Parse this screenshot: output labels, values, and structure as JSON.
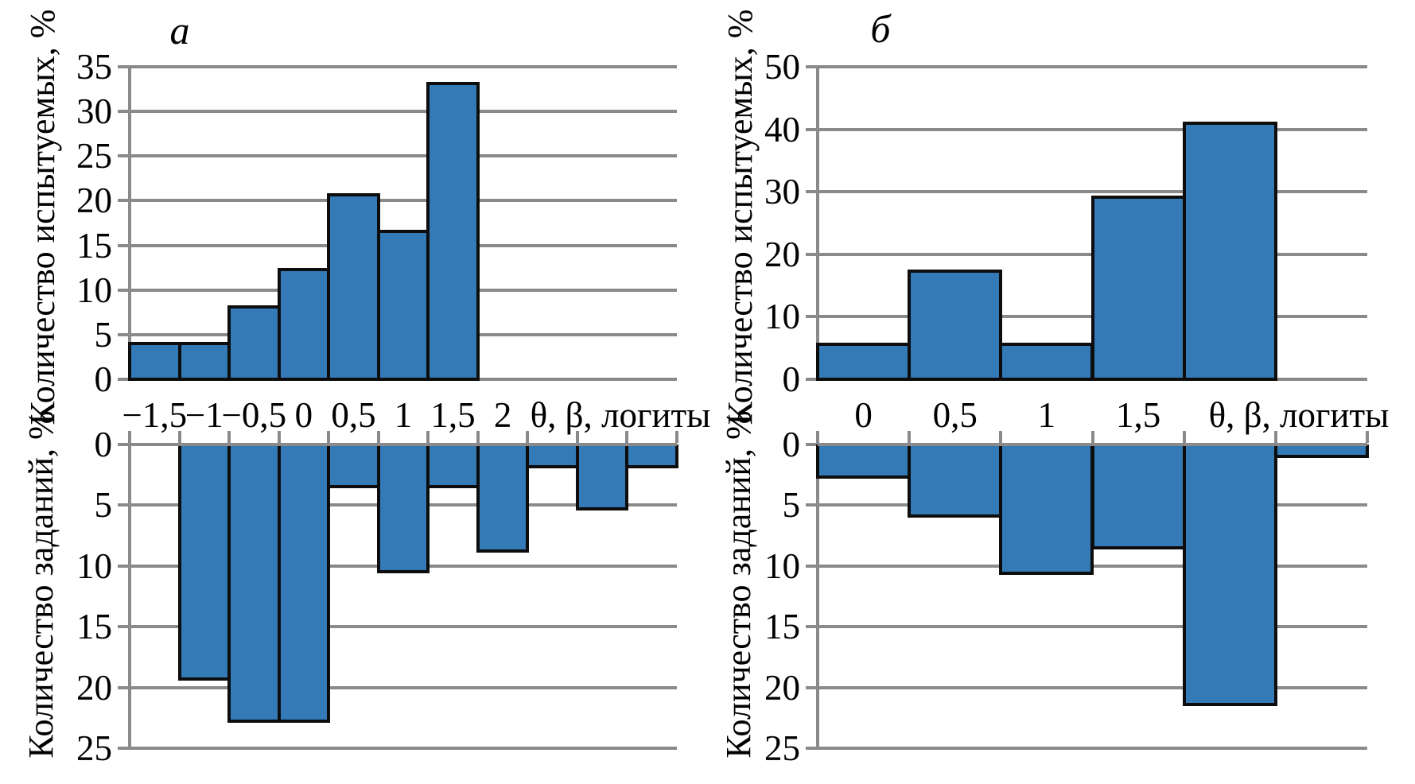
{
  "figure": {
    "panels": [
      {
        "label": "а"
      },
      {
        "label": "б"
      }
    ],
    "colors": {
      "bar_fill": "#347ab7",
      "bar_border": "#0d0d0d",
      "grid": "#8a8a8a",
      "background": "#ffffff",
      "text": "#000000"
    }
  },
  "chart_data": [
    {
      "id": "panel-a-top",
      "type": "bar",
      "orientation": "up",
      "ylabel": "Количество испытуемых, %",
      "xlabel": "θ, β, логиты",
      "ylim": [
        0,
        35
      ],
      "yticks": [
        35,
        30,
        25,
        20,
        15,
        10,
        5,
        0
      ],
      "x_tick_labels": [
        "−1,5",
        "−1",
        "−0,5",
        "0",
        "0,5",
        "1",
        "1,5",
        "2"
      ],
      "categories": [
        "−1,5",
        "−1",
        "−0,5",
        "0",
        "0,5",
        "1",
        "1,5"
      ],
      "values": [
        4.2,
        4.2,
        8.3,
        12.5,
        20.8,
        16.7,
        33.3
      ],
      "start_slot": 1,
      "n_slots": 11,
      "grid": true,
      "legend": false
    },
    {
      "id": "panel-a-bottom",
      "type": "bar",
      "orientation": "down",
      "ylabel": "Количество заданий, %",
      "ylim": [
        0,
        25
      ],
      "yticks": [
        0,
        5,
        10,
        15,
        20,
        25
      ],
      "categories": [
        "−1",
        "−0,5",
        "0",
        "0,5",
        "1",
        "1,5",
        "2",
        "",
        "",
        ""
      ],
      "values": [
        19.3,
        22.8,
        22.8,
        3.5,
        10.5,
        3.5,
        8.8,
        1.8,
        5.3,
        1.8
      ],
      "start_slot": 2,
      "n_slots": 11,
      "grid": true,
      "legend": false
    },
    {
      "id": "panel-b-top",
      "type": "bar",
      "orientation": "up",
      "ylabel": "Количество испытуемых, %",
      "xlabel": "θ, β, логиты",
      "ylim": [
        0,
        50
      ],
      "yticks": [
        50,
        40,
        30,
        20,
        10,
        0
      ],
      "x_tick_labels": [
        "0",
        "0,5",
        "1",
        "1,5"
      ],
      "categories": [
        "0",
        "0,5",
        "1",
        "1,5",
        ""
      ],
      "values": [
        5.9,
        17.6,
        5.9,
        29.4,
        41.2
      ],
      "start_slot": 1,
      "n_slots": 6,
      "grid": true,
      "legend": false
    },
    {
      "id": "panel-b-bottom",
      "type": "bar",
      "orientation": "down",
      "ylabel": "Количество заданий, %",
      "ylim": [
        0,
        25
      ],
      "yticks": [
        0,
        5,
        10,
        15,
        20,
        25
      ],
      "categories": [
        "0",
        "0,5",
        "1",
        "1,5",
        "",
        ""
      ],
      "values": [
        2.7,
        5.9,
        10.6,
        8.5,
        21.4,
        1.0
      ],
      "start_slot": 1,
      "n_slots": 6,
      "grid": true,
      "legend": false
    }
  ]
}
